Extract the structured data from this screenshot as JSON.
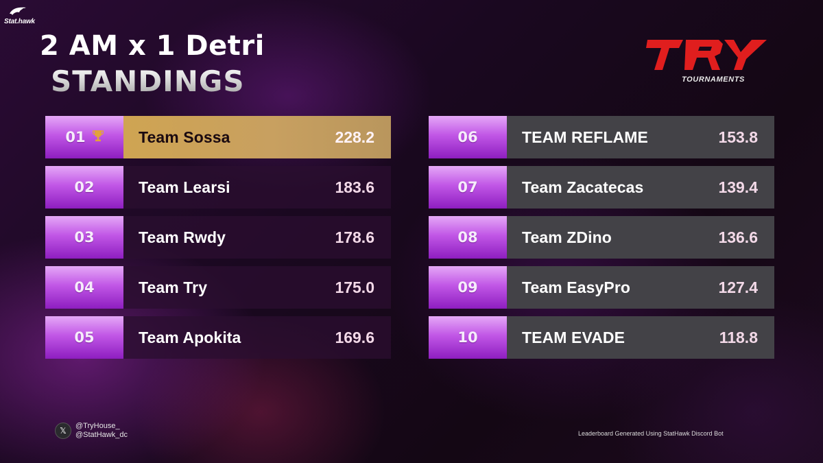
{
  "brand": {
    "label": "Stat.hawk",
    "icon": "hawk-icon"
  },
  "header": {
    "title": "2 AM x 1 Detri",
    "subtitle": "STANDINGS"
  },
  "logo": {
    "mark": "TRY",
    "tagline": "TOURNAMENTS",
    "color": "#e01e1e"
  },
  "standings": {
    "left": [
      {
        "rank": "01",
        "team": "Team Sossa",
        "score": "228.2",
        "leader": true
      },
      {
        "rank": "02",
        "team": "Team Learsi",
        "score": "183.6"
      },
      {
        "rank": "03",
        "team": "Team Rwdy",
        "score": "178.6"
      },
      {
        "rank": "04",
        "team": "Team Try",
        "score": "175.0"
      },
      {
        "rank": "05",
        "team": "Team Apokita",
        "score": "169.6"
      }
    ],
    "right": [
      {
        "rank": "06",
        "team": "TEAM REFLAME",
        "score": "153.8"
      },
      {
        "rank": "07",
        "team": "Team Zacatecas",
        "score": "139.4"
      },
      {
        "rank": "08",
        "team": "Team ZDino",
        "score": "136.6"
      },
      {
        "rank": "09",
        "team": "Team EasyPro",
        "score": "127.4"
      },
      {
        "rank": "10",
        "team": "TEAM EVADE",
        "score": "118.8"
      }
    ]
  },
  "footer": {
    "social_icon": "x-icon",
    "social_glyph": "𝕏",
    "handle_1": "@TryHouse_",
    "handle_2": "@StatHawk_dc",
    "credit": "Leaderboard Generated Using StatHawk Discord Bot"
  },
  "colors": {
    "rank_gradient_top": "#e5a8f7",
    "rank_gradient_bottom": "#8e1ec0",
    "leader_bar": "#cfa452",
    "trophy": "#e2a33a",
    "right_row_bg": "#434247"
  }
}
